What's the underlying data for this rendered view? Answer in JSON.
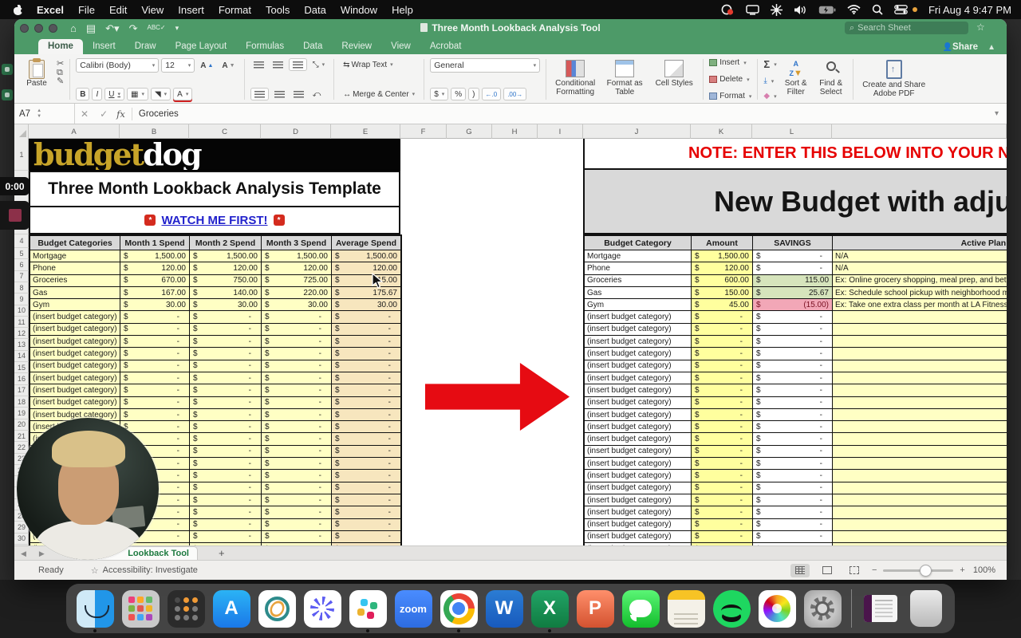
{
  "menu_bar": {
    "items": [
      "Excel",
      "File",
      "Edit",
      "View",
      "Insert",
      "Format",
      "Tools",
      "Data",
      "Window",
      "Help"
    ],
    "clock": "Fri Aug 4 9:47 PM"
  },
  "window": {
    "title": "Three Month Lookback Analysis Tool",
    "search_placeholder": "Search Sheet",
    "share_label": "Share",
    "tabs": [
      "Home",
      "Insert",
      "Draw",
      "Page Layout",
      "Formulas",
      "Data",
      "Review",
      "View",
      "Acrobat"
    ],
    "active_tab": "Home"
  },
  "ribbon": {
    "paste": "Paste",
    "font_name": "Calibri (Body)",
    "font_size": "12",
    "bold": "B",
    "italic": "I",
    "underline": "U",
    "wrap_text": "Wrap Text",
    "merge_center": "Merge & Center",
    "number_format": "General",
    "currency": "$",
    "percent": "%",
    "comma": ")",
    "conditional": "Conditional Formatting",
    "format_table": "Format as Table",
    "cell_styles": "Cell Styles",
    "insert": "Insert",
    "delete": "Delete",
    "format": "Format",
    "sort_filter": "Sort & Filter",
    "find_select": "Find & Select",
    "adobe": "Create and Share Adobe PDF"
  },
  "formula_bar": {
    "cell_ref": "A7",
    "value": "Groceries"
  },
  "grid": {
    "columns": [
      "A",
      "B",
      "C",
      "D",
      "E",
      "F",
      "G",
      "H",
      "I",
      "J",
      "K",
      "L"
    ],
    "row_count": 30
  },
  "left_table": {
    "logo_budget": "budget",
    "logo_dog": "dog",
    "title": "Three Month Lookback Analysis Template",
    "watch_link": "WATCH ME FIRST!",
    "headers": [
      "Budget Categories",
      "Month 1 Spend",
      "Month 2 Spend",
      "Month 3 Spend",
      "Average Spend"
    ],
    "currency": "$",
    "dash": "-",
    "insert_label": "(insert budget category)",
    "insert_rows": 21,
    "rows": [
      [
        "Mortgage",
        "1,500.00",
        "1,500.00",
        "1,500.00",
        "1,500.00"
      ],
      [
        "Phone",
        "120.00",
        "120.00",
        "120.00",
        "120.00"
      ],
      [
        "Groceries",
        "670.00",
        "750.00",
        "725.00",
        "715.00"
      ],
      [
        "Gas",
        "167.00",
        "140.00",
        "220.00",
        "175.67"
      ],
      [
        "Gym",
        "30.00",
        "30.00",
        "30.00",
        "30.00"
      ]
    ]
  },
  "right_table": {
    "note": "NOTE: ENTER THIS BELOW INTO YOUR NEW BUDGET",
    "banner_title": "New Budget with adjustments",
    "headers": [
      "Budget Category",
      "Amount",
      "SAVINGS",
      "Active Plan to"
    ],
    "currency": "$",
    "dash": "-",
    "insert_label": "(insert budget category)",
    "insert_rows": 21,
    "rows": [
      {
        "category": "Mortgage",
        "amount": "1,500.00",
        "savings": "-",
        "style": "plain",
        "plan": "N/A"
      },
      {
        "category": "Phone",
        "amount": "120.00",
        "savings": "-",
        "style": "plain",
        "plan": "N/A"
      },
      {
        "category": "Groceries",
        "amount": "600.00",
        "savings": "115.00",
        "style": "good",
        "plan": "Ex: Online grocery shopping, meal prep, and better"
      },
      {
        "category": "Gas",
        "amount": "150.00",
        "savings": "25.67",
        "style": "good",
        "plan": "Ex: Schedule school pickup with neighborhood moms"
      },
      {
        "category": "Gym",
        "amount": "45.00",
        "savings": "(15.00)",
        "style": "bad",
        "plan": "Ex: Take one extra class per month at LA Fitness to"
      }
    ]
  },
  "sheet_bar": {
    "tab": "Lookback Tool",
    "add": "+"
  },
  "status_bar": {
    "ready": "Ready",
    "accessibility": "Accessibility: Investigate",
    "zoom": "100%"
  },
  "recorder": {
    "time": "0:00"
  },
  "colors": {
    "excel_green": "#4d9a68",
    "cell_yellow": "#ffffc4",
    "cell_tan": "#f7e6be",
    "amount_yellow": "#ffff9e",
    "savings_good": "#d6e4bc",
    "savings_bad": "#f2a7b7",
    "note_red": "#e60000",
    "arrow_red": "#e60b12"
  },
  "dock": {
    "items": [
      {
        "name": "Finder",
        "icon": "finder",
        "running": true
      },
      {
        "name": "Launchpad",
        "icon": "launchpad"
      },
      {
        "name": "Calculator",
        "icon": "calculator"
      },
      {
        "name": "App Store",
        "icon": "appstore",
        "letter": "A"
      },
      {
        "name": "Atom App",
        "icon": "atom"
      },
      {
        "name": "Loom",
        "icon": "loom"
      },
      {
        "name": "Slack",
        "icon": "slack",
        "running": true
      },
      {
        "name": "Zoom",
        "icon": "zoomapp",
        "letter": "zoom"
      },
      {
        "name": "Chrome",
        "icon": "chrome",
        "running": true
      },
      {
        "name": "Word",
        "icon": "word",
        "letter": "W"
      },
      {
        "name": "Excel",
        "icon": "excelapp",
        "letter": "X",
        "running": true
      },
      {
        "name": "PowerPoint",
        "icon": "powerpoint",
        "letter": "P"
      },
      {
        "name": "Messages",
        "icon": "messages"
      },
      {
        "name": "Notes",
        "icon": "notes"
      },
      {
        "name": "Spotify",
        "icon": "spotify"
      },
      {
        "name": "Photos",
        "icon": "photos"
      },
      {
        "name": "System Settings",
        "icon": "settings"
      },
      {
        "name": "Minimized Window",
        "icon": "minwin"
      },
      {
        "name": "Trash",
        "icon": "trash"
      }
    ]
  }
}
